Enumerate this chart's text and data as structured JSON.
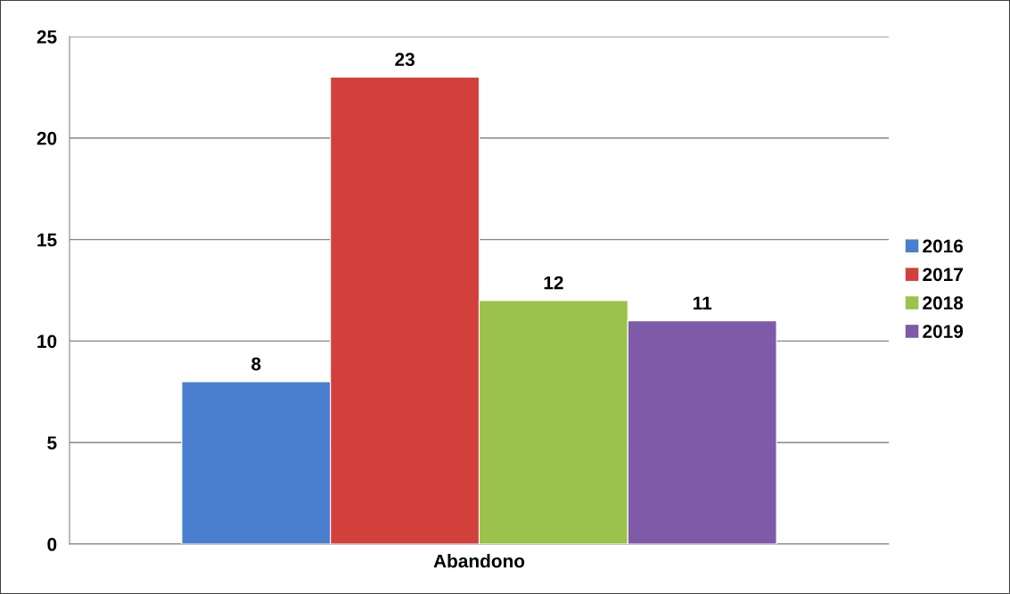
{
  "chart_data": {
    "type": "bar",
    "categories": [
      "Abandono"
    ],
    "series": [
      {
        "name": "2016",
        "color": "#4a7fcf",
        "values": [
          8
        ]
      },
      {
        "name": "2017",
        "color": "#d2403c",
        "values": [
          23
        ]
      },
      {
        "name": "2018",
        "color": "#9bc24a",
        "values": [
          12
        ]
      },
      {
        "name": "2019",
        "color": "#7f5aa8",
        "values": [
          11
        ]
      }
    ],
    "ylim": [
      0,
      25
    ],
    "yticks": [
      0,
      5,
      10,
      15,
      20,
      25
    ],
    "grid": "y",
    "legend": "right",
    "data_labels": true
  }
}
